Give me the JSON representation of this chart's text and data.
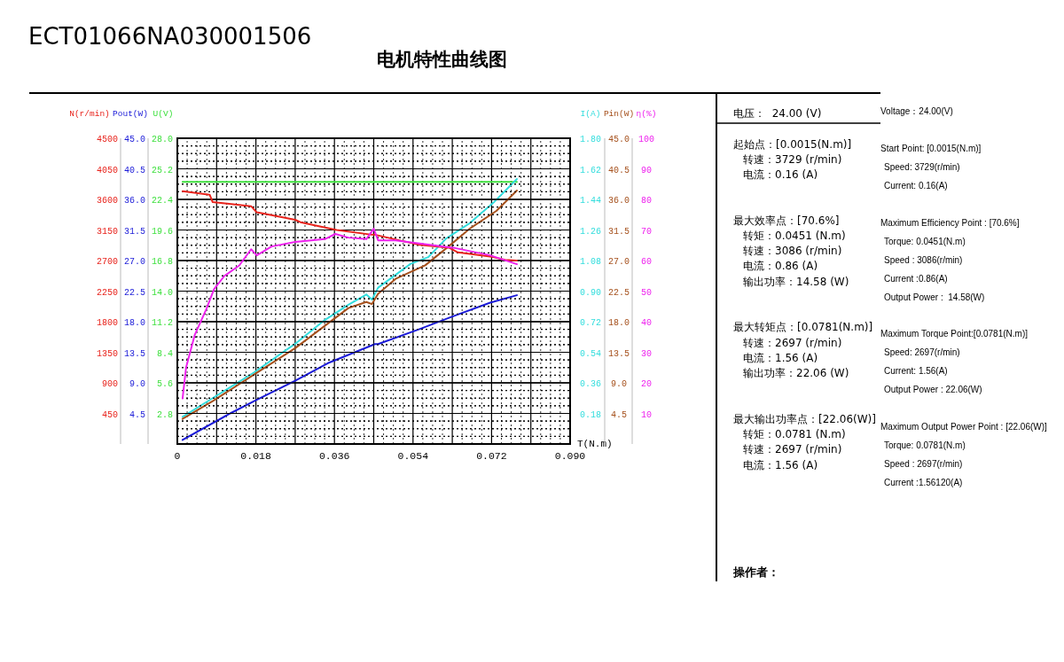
{
  "chart_data": [
    {
      "type": "line",
      "title": "电机特性曲线图",
      "xlabel": "T(N.m)",
      "ylabel": "U(V)",
      "y2label": "I(A)",
      "xlim": [
        0,
        0.09
      ],
      "xticks": [
        0,
        0.018,
        0.036,
        0.054,
        0.072,
        {
          "value": 0.09,
          "label": "0.090"
        }
      ],
      "ylim": [
        0,
        28
      ],
      "yticks": [
        2.8,
        5.6,
        8.4,
        11.2,
        {
          "value": 14,
          "label": "14.0"
        },
        16.8,
        19.6,
        22.4,
        25.2,
        {
          "value": 28,
          "label": "28.0"
        }
      ],
      "y2lim": [
        0,
        1.8
      ],
      "y2ticks": [
        0.18,
        0.36,
        0.54,
        0.72,
        {
          "value": 0.9,
          "label": "0.90"
        },
        1.08,
        1.26,
        1.44,
        1.62,
        {
          "value": 1.8,
          "label": "1.80"
        }
      ],
      "grid": true,
      "series": [
        {
          "color": "#3ee03e",
          "x": [
            0.0012,
            0.04,
            0.0778
          ],
          "values": [
            24,
            24,
            24
          ]
        },
        {
          "axis": "y2",
          "color": "#33dddd",
          "x": [
            0.0012,
            0.0081,
            0.0175,
            0.027,
            0.0338,
            0.0392,
            0.0433,
            0.0446,
            0.046,
            0.0534,
            0.0575,
            0.0616,
            0.067,
            0.0724,
            0.0778
          ],
          "values": [
            0.16,
            0.27,
            0.42,
            0.59,
            0.73,
            0.82,
            0.88,
            0.85,
            0.92,
            1.06,
            1.1,
            1.21,
            1.3,
            1.42,
            1.56
          ]
        }
      ],
      "annotations": [
        "ECT01066NA030001506",
        "电压：  24.00 (V)",
        "起始点：[0.0015(N.m)]",
        "转速：3729 (r/min)",
        "电流：0.16 (A)",
        "最大效率点：[70.6%]",
        "转矩：0.0451 (N.m)",
        "转速：3086 (r/min)",
        "电流：0.86 (A)",
        "输出功率：14.58 (W)",
        "最大转矩点：[0.0781(N.m)]",
        "转速：2697 (r/min)",
        "电流：1.56 (A)",
        "输出功率：22.06 (W)",
        "最大输出功率点：[22.06(W)]",
        "转矩：0.0781 (N.m)",
        "转速：2697 (r/min)",
        "电流：1.56 (A)",
        "操作者：",
        "Voltage：24.00(V)",
        "Start Point: [0.0015(N.m)]",
        "Speed: 3729(r/min)",
        "Current: 0.16(A)",
        "Maximum Efficiency Point : [70.6%]",
        "Torque: 0.0451(N.m)",
        "Speed : 3086(r/min)",
        "Current :0.86(A)",
        "Output Power :  14.58(W)",
        "Maximum Torque Point:[0.0781(N.m)]",
        "Speed: 2697(r/min)",
        "Current: 1.56(A)",
        "Output Power : 22.06(W)",
        "Maximum Output Power Point : [22.06(W)]",
        "Torque: 0.0781(N.m)",
        "Speed : 2697(r/min)",
        "Current :1.56120(A)"
      ]
    },
    {
      "type": "line",
      "ylabel": "Pout(W)",
      "y2label": "Pin(W)",
      "xlim": [
        0,
        0.09
      ],
      "tick_labels": "y",
      "grid": true,
      "ylim": [
        0,
        45
      ],
      "yticks": [
        4.5,
        {
          "value": 9,
          "label": "9.0"
        },
        13.5,
        {
          "value": 18,
          "label": "18.0"
        },
        22.5,
        {
          "value": 27,
          "label": "27.0"
        },
        31.5,
        {
          "value": 36,
          "label": "36.0"
        },
        40.5,
        {
          "value": 45,
          "label": "45.0"
        }
      ],
      "y2lim": [
        0,
        45
      ],
      "y2ticks": [
        4.5,
        {
          "value": 9,
          "label": "9.0"
        },
        13.5,
        {
          "value": 18,
          "label": "18.0"
        },
        22.5,
        {
          "value": 27,
          "label": "27.0"
        },
        31.5,
        {
          "value": 36,
          "label": "36.0"
        },
        40.5,
        {
          "value": 45,
          "label": "45.0"
        }
      ],
      "series": [
        {
          "color": "#1a1ad8",
          "x": [
            0.0012,
            0.0121,
            0.0182,
            0.027,
            0.0345,
            0.0453,
            0.046,
            0.0555,
            0.0636,
            0.0717,
            0.0778
          ],
          "values": [
            0.6,
            4.5,
            6.5,
            9.3,
            11.9,
            14.7,
            14.7,
            16.9,
            18.9,
            20.8,
            21.9
          ]
        },
        {
          "axis": "y2",
          "color": "#a5501c",
          "x": [
            0.0012,
            0.0081,
            0.0175,
            0.027,
            0.0338,
            0.0392,
            0.0433,
            0.0446,
            0.046,
            0.05,
            0.0568,
            0.0622,
            0.067,
            0.0731,
            0.0778
          ],
          "values": [
            3.7,
            6.3,
            10.2,
            14.1,
            17.4,
            20,
            20.9,
            20.6,
            22.1,
            24.3,
            26.3,
            29.1,
            31.7,
            34.3,
            37.3
          ]
        }
      ]
    },
    {
      "type": "line",
      "ylabel": "N(r/min)",
      "y2label": "η(%)",
      "xlim": [
        0,
        0.09
      ],
      "tick_labels": "y",
      "grid": true,
      "ylim": [
        0,
        4500
      ],
      "yticks": [
        450,
        900,
        1350,
        1800,
        2250,
        2700,
        3150,
        3600,
        4050,
        4500
      ],
      "y2lim": [
        0,
        100
      ],
      "y2ticks": [
        10,
        20,
        30,
        40,
        50,
        60,
        70,
        80,
        90,
        100
      ],
      "series": [
        {
          "color": "#e8231c",
          "x": [
            0.0012,
            0.0074,
            0.0081,
            0.0169,
            0.0182,
            0.027,
            0.0284,
            0.0365,
            0.0446,
            0.0453,
            0.0555,
            0.0622,
            0.0643,
            0.0717,
            0.0751,
            0.0778
          ],
          "values": [
            3720,
            3670,
            3560,
            3500,
            3410,
            3300,
            3260,
            3150,
            3080,
            3080,
            2930,
            2890,
            2820,
            2760,
            2710,
            2700
          ]
        },
        {
          "axis": "y2",
          "color": "#ee22ee",
          "x": [
            0.0012,
            0.002,
            0.004,
            0.0067,
            0.0084,
            0.0108,
            0.0142,
            0.0169,
            0.0182,
            0.0216,
            0.027,
            0.0338,
            0.0362,
            0.0392,
            0.0433,
            0.045,
            0.046,
            0.05,
            0.0555,
            0.0636,
            0.0717,
            0.0778
          ],
          "values": [
            14.9,
            25,
            35.7,
            44.3,
            50.6,
            55,
            58.4,
            63.7,
            61.7,
            64.6,
            66.1,
            67,
            68.7,
            67.5,
            67,
            70.4,
            66.6,
            66.6,
            65.6,
            64.1,
            61.7,
            58.8
          ]
        }
      ]
    }
  ]
}
